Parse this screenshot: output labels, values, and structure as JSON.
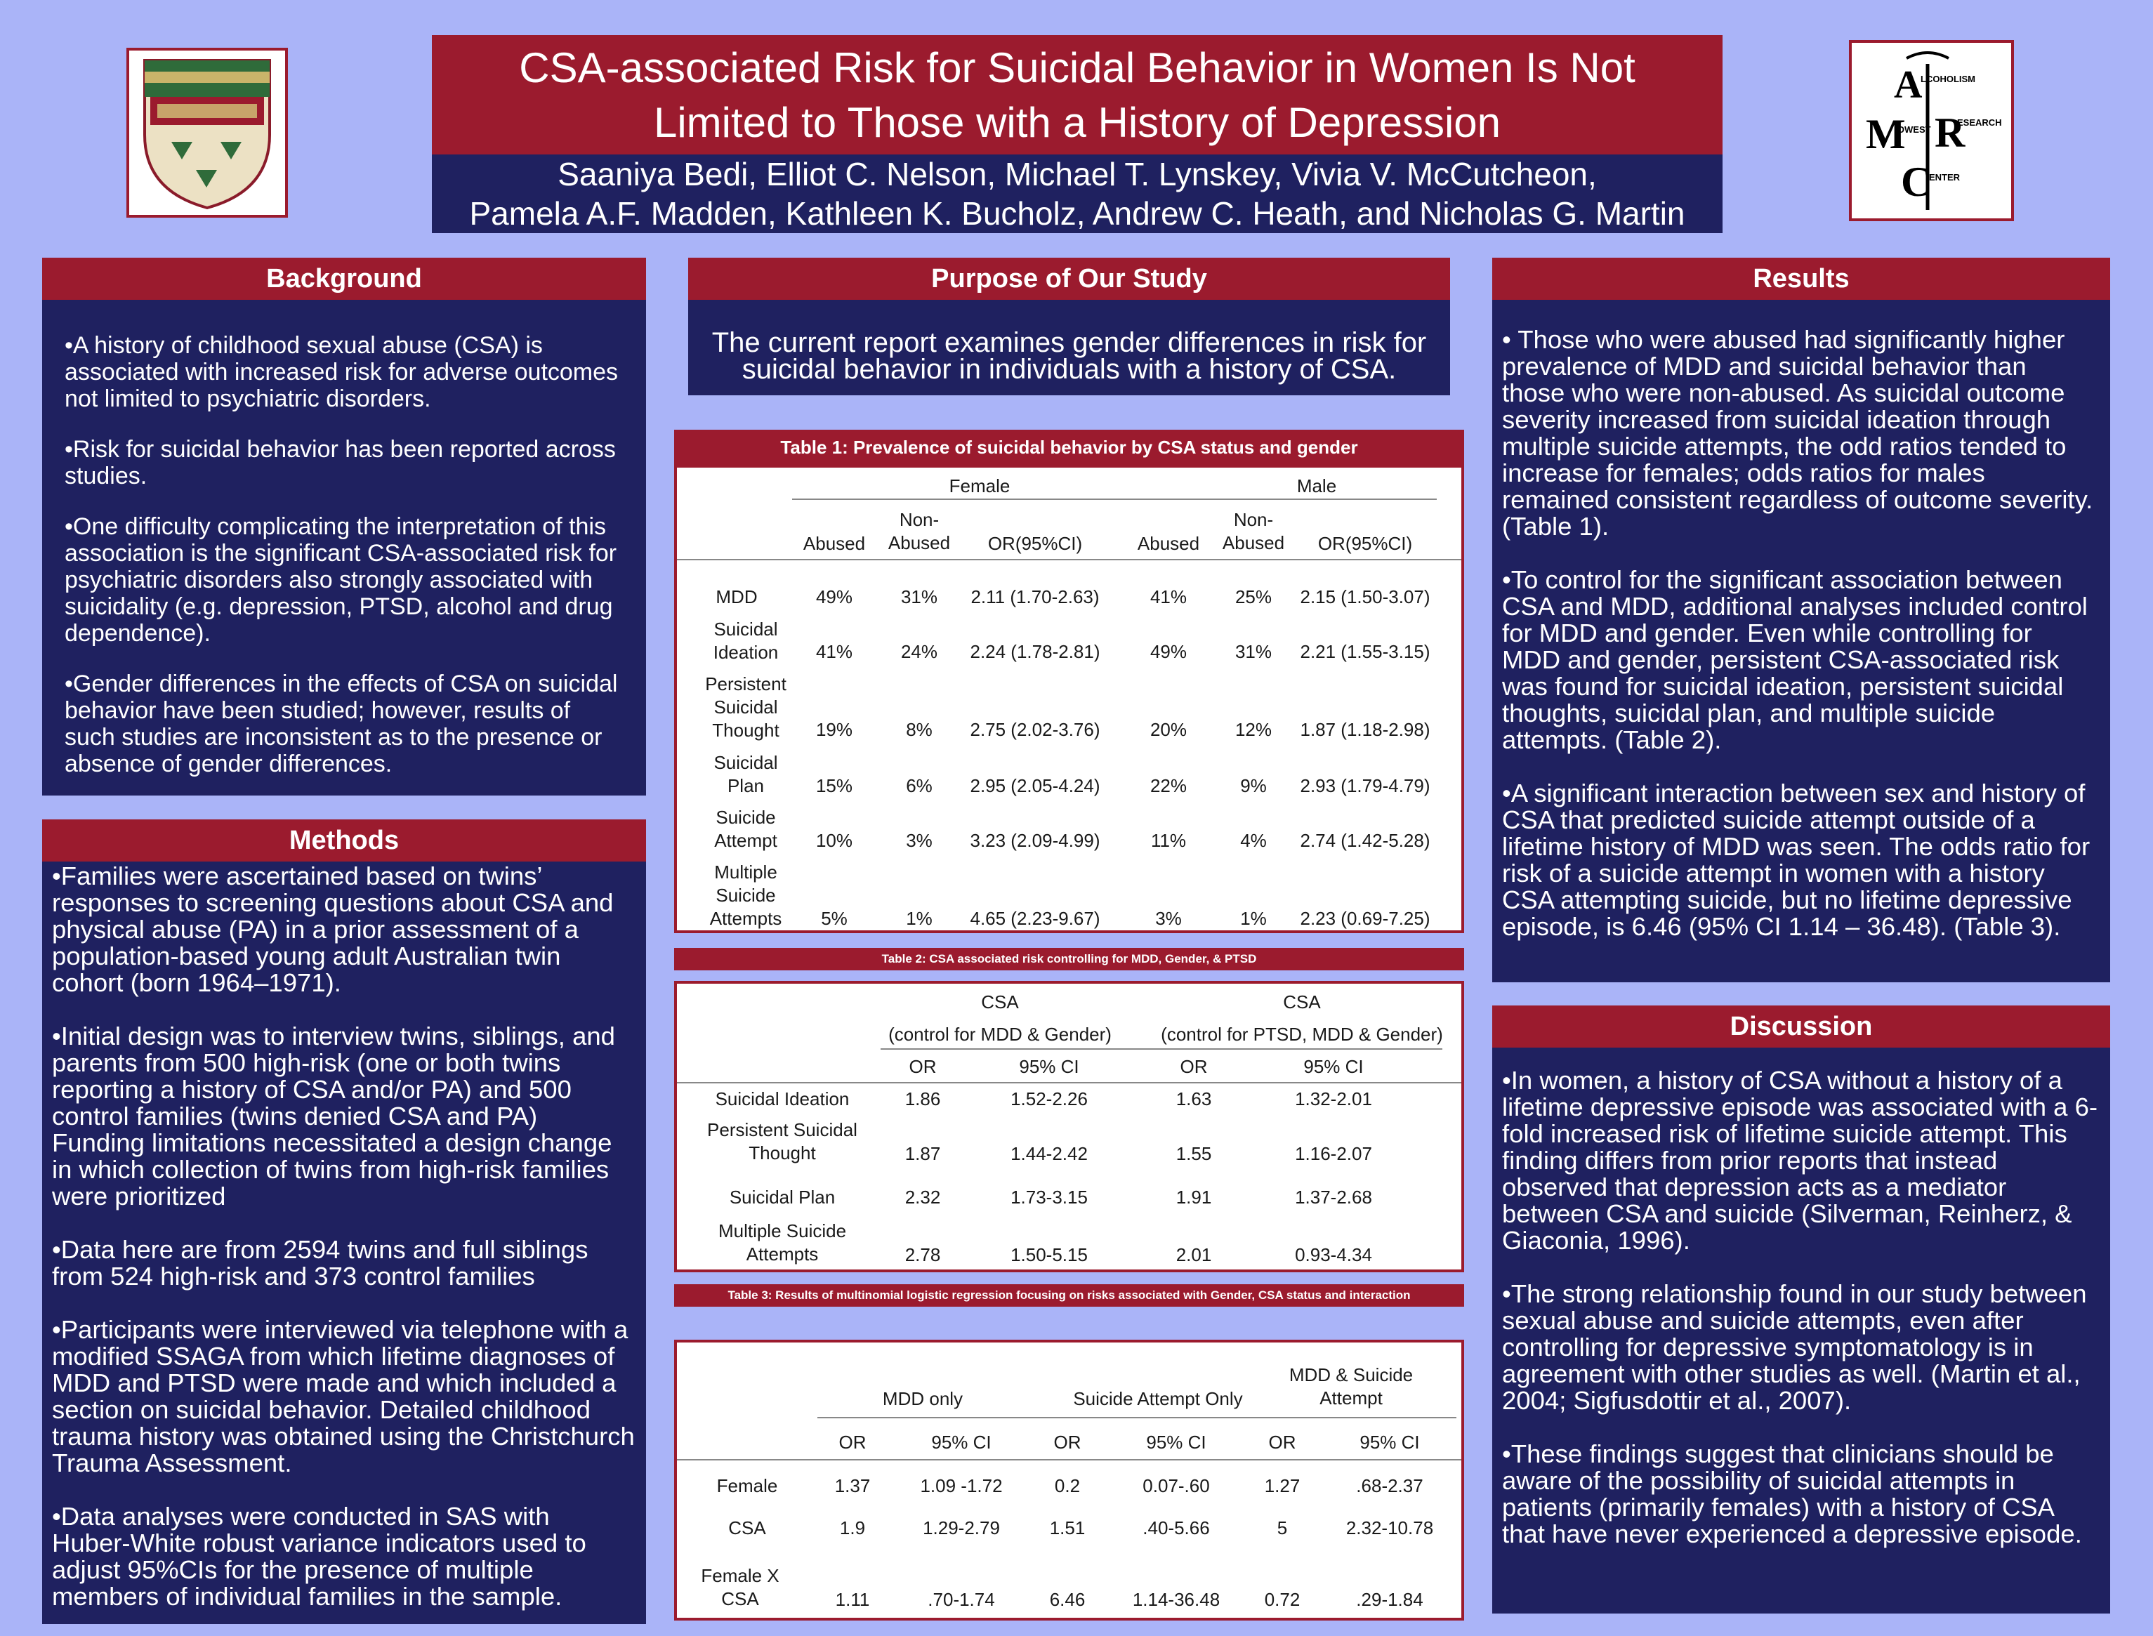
{
  "title": {
    "line1": "CSA-associated Risk for Suicidal Behavior in Women Is Not",
    "line2": "Limited to Those with a History of Depression"
  },
  "authors": {
    "line1": "Saaniya Bedi, Elliot C. Nelson, Michael T. Lynskey, Vivia V. McCutcheon,",
    "line2": "Pamela A.F. Madden, Kathleen K. Bucholz, Andrew C. Heath, and Nicholas G. Martin"
  },
  "logo_right": {
    "letters": [
      "A",
      "M",
      "R",
      "C"
    ],
    "words": [
      "LCOHOLISM",
      "IDWEST",
      "ESEARCH",
      "ENTER"
    ]
  },
  "colors": {
    "background": "#aab4f8",
    "red": "#9b1b2e",
    "navy": "#1f2160"
  },
  "background": {
    "heading": "Background",
    "bullets": [
      "•A history of childhood sexual abuse (CSA) is associated with increased risk for adverse outcomes not limited to psychiatric disorders.",
      "•Risk for suicidal behavior has been reported across studies.",
      "•One difficulty complicating the interpretation of this association is the significant CSA-associated risk for psychiatric disorders also strongly associated with suicidality (e.g. depression, PTSD, alcohol and drug dependence).",
      "•Gender differences in the effects of CSA on suicidal behavior have been studied; however, results of such studies are inconsistent as to the presence or absence of gender differences."
    ]
  },
  "methods": {
    "heading": "Methods",
    "bullets": [
      "•Families were ascertained based on twins’ responses to screening questions about CSA and physical abuse (PA) in a prior assessment of a population-based young adult Australian twin cohort (born 1964–1971).",
      "•Initial design was to interview twins, siblings, and parents from 500 high-risk (one or both twins reporting a history of CSA and/or PA) and 500 control families (twins denied CSA and PA) Funding limitations necessitated a design change in which collection of twins from high-risk families were prioritized",
      "•Data here are from 2594 twins and full siblings from 524 high-risk and 373 control families",
      "•Participants were interviewed via telephone with a modified SSAGA from which lifetime diagnoses of MDD and PTSD were made and which included a section on suicidal behavior. Detailed childhood trauma history was obtained using the Christchurch Trauma Assessment.",
      "•Data analyses were conducted in SAS with Huber-White robust variance indicators used to adjust 95%CIs for the presence of multiple members of individual families in the sample."
    ]
  },
  "purpose": {
    "heading": "Purpose of Our Study",
    "text": "The current report examines gender differences in risk for suicidal behavior in individuals with a history of CSA."
  },
  "table1": {
    "caption": "Table 1: Prevalence of suicidal behavior by CSA status and gender",
    "groups": [
      "Female",
      "Male"
    ],
    "columns": [
      "Abused",
      "Non-Abused",
      "OR(95%CI)",
      "Abused",
      "Non-Abused",
      "OR(95%CI)"
    ],
    "rows": [
      {
        "label": "MDD",
        "cells": [
          "49%",
          "31%",
          "2.11 (1.70-2.63)",
          "41%",
          "25%",
          "2.15 (1.50-3.07)"
        ]
      },
      {
        "label": "Suicidal Ideation",
        "cells": [
          "41%",
          "24%",
          "2.24 (1.78-2.81)",
          "49%",
          "31%",
          "2.21 (1.55-3.15)"
        ]
      },
      {
        "label": "Persistent Suicidal Thought",
        "cells": [
          "19%",
          "8%",
          "2.75 (2.02-3.76)",
          "20%",
          "12%",
          "1.87 (1.18-2.98)"
        ]
      },
      {
        "label": "Suicidal Plan",
        "cells": [
          "15%",
          "6%",
          "2.95 (2.05-4.24)",
          "22%",
          "9%",
          "2.93 (1.79-4.79)"
        ]
      },
      {
        "label": "Suicide Attempt",
        "cells": [
          "10%",
          "3%",
          "3.23 (2.09-4.99)",
          "11%",
          "4%",
          "2.74 (1.42-5.28)"
        ]
      },
      {
        "label": "Multiple Suicide Attempts",
        "cells": [
          "5%",
          "1%",
          "4.65 (2.23-9.67)",
          "3%",
          "1%",
          "2.23 (0.69-7.25)"
        ]
      }
    ]
  },
  "table2": {
    "caption": "Table 2: CSA associated risk controlling for MDD, Gender, & PTSD",
    "groups": [
      {
        "title": "CSA",
        "subtitle": "(control for MDD & Gender)"
      },
      {
        "title": "CSA",
        "subtitle": "(control for PTSD, MDD & Gender)"
      }
    ],
    "columns": [
      "OR",
      "95% CI",
      "OR",
      "95% CI"
    ],
    "rows": [
      {
        "label": "Suicidal Ideation",
        "cells": [
          "1.86",
          "1.52-2.26",
          "1.63",
          "1.32-2.01"
        ]
      },
      {
        "label": "Persistent Suicidal Thought",
        "cells": [
          "1.87",
          "1.44-2.42",
          "1.55",
          "1.16-2.07"
        ]
      },
      {
        "label": "Suicidal Plan",
        "cells": [
          "2.32",
          "1.73-3.15",
          "1.91",
          "1.37-2.68"
        ]
      },
      {
        "label": "Multiple Suicide Attempts",
        "cells": [
          "2.78",
          "1.50-5.15",
          "2.01",
          "0.93-4.34"
        ]
      }
    ]
  },
  "table3": {
    "caption": "Table 3: Results of multinomial logistic regression focusing on risks associated with Gender, CSA status and interaction",
    "groups": [
      "MDD only",
      "Suicide Attempt Only",
      "MDD & Suicide Attempt"
    ],
    "columns": [
      "OR",
      "95% CI",
      "OR",
      "95% CI",
      "OR",
      "95% CI"
    ],
    "rows": [
      {
        "label": "Female",
        "cells": [
          "1.37",
          "1.09 -1.72",
          "0.2",
          "0.07-.60",
          "1.27",
          ".68-2.37"
        ]
      },
      {
        "label": "CSA",
        "cells": [
          "1.9",
          "1.29-2.79",
          "1.51",
          ".40-5.66",
          "5",
          "2.32-10.78"
        ]
      },
      {
        "label": "Female X CSA",
        "cells": [
          "1.11",
          ".70-1.74",
          "6.46",
          "1.14-36.48",
          "0.72",
          ".29-1.84"
        ]
      }
    ]
  },
  "results": {
    "heading": "Results",
    "bullets": [
      "• Those who were abused had significantly higher prevalence of MDD and suicidal behavior than those who were non-abused. As suicidal outcome severity increased from suicidal ideation through multiple suicide attempts, the odd ratios tended to increase for females; odds ratios for males remained consistent regardless of outcome severity. (Table 1).",
      "•To control for the significant association between CSA and MDD, additional analyses included control for MDD and gender. Even while controlling for MDD and gender, persistent CSA-associated risk was found for suicidal ideation, persistent suicidal thoughts, suicidal plan, and multiple suicide attempts. (Table 2).",
      "•A significant interaction between sex and history of CSA that predicted suicide attempt outside of a lifetime history of MDD was seen. The odds ratio for risk of a suicide attempt in women with a history CSA attempting suicide, but no lifetime depressive episode, is 6.46 (95% CI 1.14 – 36.48). (Table 3)."
    ]
  },
  "discussion": {
    "heading": "Discussion",
    "bullets": [
      "•In women, a history of CSA without a history of a lifetime depressive episode was associated with a 6-fold increased risk of lifetime suicide attempt. This finding differs from prior reports that instead observed that depression acts as a mediator between CSA and suicide (Silverman, Reinherz, & Giaconia, 1996).",
      "•The strong relationship found in our study between sexual abuse and suicide attempts, even after controlling for depressive symptomatology is in agreement with other studies as well. (Martin et al., 2004; Sigfusdottir et al., 2007).",
      "•These findings suggest that clinicians should be aware of the possibility of suicidal attempts in patients (primarily females) with a history of CSA that have never experienced a depressive episode."
    ]
  }
}
